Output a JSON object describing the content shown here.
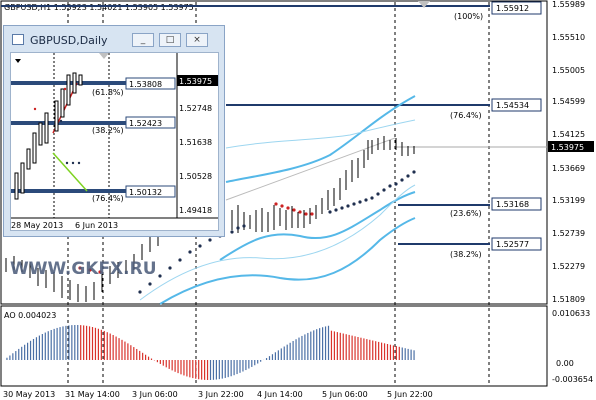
{
  "main": {
    "header": "GBPUSD,H1  1.53923 1.54021 1.53905 1.53975",
    "price_ticks": [
      "1.55989",
      "1.55510",
      "1.55005",
      "1.54599",
      "1.54125",
      "1.53669",
      "1.53199",
      "1.52739",
      "1.52279",
      "1.51809"
    ],
    "current_price": "1.53975",
    "fib_levels": [
      {
        "pct": "(100%)",
        "price": "1.55912"
      },
      {
        "pct": "(76.4%)",
        "price": "1.54534"
      },
      {
        "pct": "(23.6%)",
        "price": "1.53168"
      },
      {
        "pct": "(38.2%)",
        "price": "1.52577"
      }
    ],
    "watermark": "WWW.GKFX.RU",
    "ao_label": "AO 0.004023",
    "ao_ticks": [
      "0.010633",
      "0.00",
      "-0.003654"
    ],
    "time_labels": [
      "30 May 2013",
      "31 May 14:00",
      "3 Jun 06:00",
      "3 Jun 22:00",
      "4 Jun 14:00",
      "5 Jun 06:00",
      "5 Jun 22:00"
    ]
  },
  "mini": {
    "title": "GBPUSD,Daily",
    "buttons": [
      "_",
      "□",
      "×"
    ],
    "price_ticks": [
      "1.53975",
      "1.52748",
      "1.51638",
      "1.50528",
      "1.49418"
    ],
    "levels": [
      {
        "pct": "(61.8%)",
        "price": "1.53808"
      },
      {
        "pct": "(38.2%)",
        "price": "1.52423"
      },
      {
        "pct": "(76.4%)",
        "price": "1.50132"
      }
    ],
    "time_labels": [
      "28 May 2013",
      "6 Jun 2013"
    ]
  },
  "colors": {
    "fib_line": "#1f3a6b",
    "bands": "#55b8e8",
    "ao_up": "#4a6fa5",
    "ao_down": "#d9322b",
    "dots_dark": "#1f2f4f",
    "dots_red": "#cc2222"
  }
}
